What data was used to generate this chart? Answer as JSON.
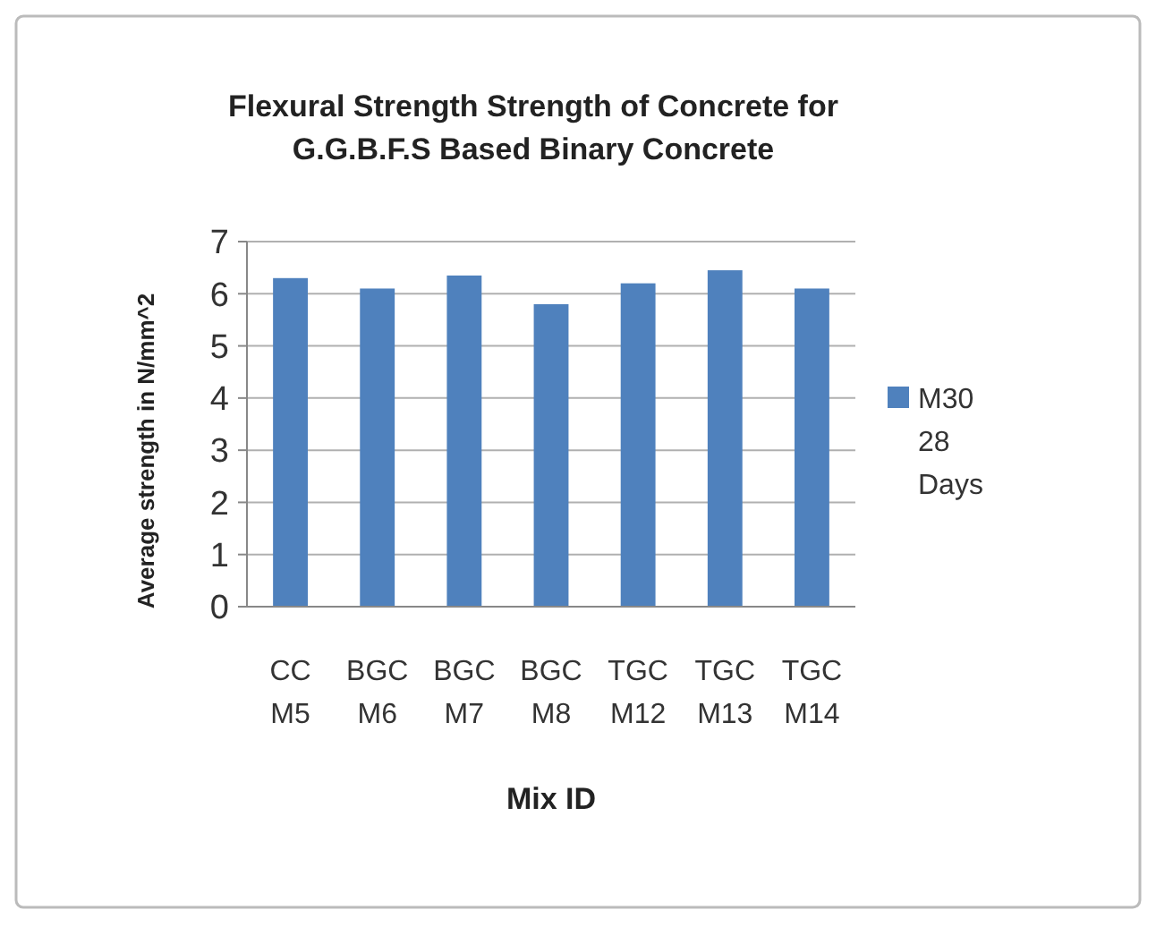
{
  "chart_data": {
    "type": "bar",
    "title": "Flexural Strength Strength of Concrete for G.G.B.F.S Based Binary Concrete",
    "xlabel": "Mix ID",
    "ylabel": "Average strength in N/mm^2",
    "categories": [
      "CC M5",
      "BGC M6",
      "BGC M7",
      "BGC M8",
      "TGC M12",
      "TGC M13",
      "TGC M14"
    ],
    "series": [
      {
        "name": "M30 28 Days",
        "color": "#4f81bd",
        "values": [
          6.3,
          6.1,
          6.35,
          5.8,
          6.2,
          6.45,
          6.1
        ]
      }
    ],
    "ylim": [
      0,
      7
    ],
    "yticks": [
      0,
      1,
      2,
      3,
      4,
      5,
      6,
      7
    ],
    "grid": "y",
    "legend": "right"
  }
}
